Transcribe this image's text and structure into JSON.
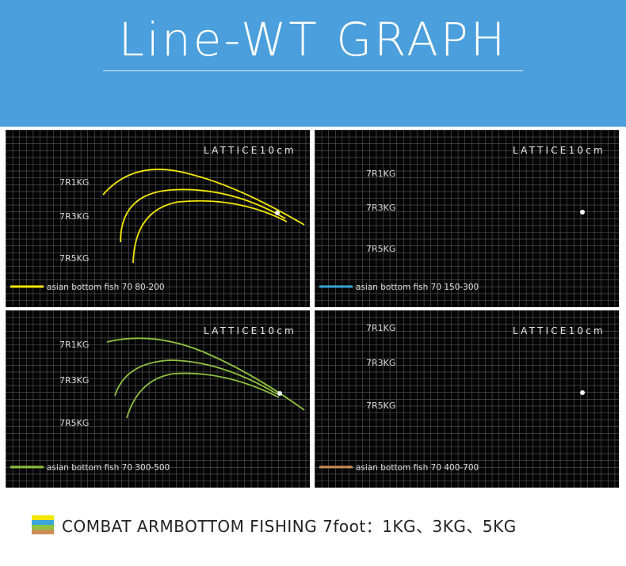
{
  "header": {
    "title": "Line-WT GRAPH"
  },
  "footer": {
    "text": "COMBAT ARMBOTTOM FISHING 7foot：1KG、3KG、5KG",
    "swatch_colors": [
      "#f2e600",
      "#3aa6dd",
      "#8ec23f",
      "#c98f55"
    ]
  },
  "chart_data": [
    {
      "type": "line",
      "grid_label": "LATTICE10cm",
      "color": "#f2e600",
      "legend": "asian bottom fish 70 80-200",
      "series": [
        {
          "name": "7R1KG"
        },
        {
          "name": "7R3KG"
        },
        {
          "name": "7R5KG"
        }
      ]
    },
    {
      "type": "line",
      "grid_label": "LATTICE10cm",
      "color": "#3aa6dd",
      "legend": "asian bottom fish 70 150-300",
      "series": [
        {
          "name": "7R1KG"
        },
        {
          "name": "7R3KG"
        },
        {
          "name": "7R5KG"
        }
      ]
    },
    {
      "type": "line",
      "grid_label": "LATTICE10cm",
      "color": "#8ec23f",
      "legend": "asian bottom fish 70 300-500",
      "series": [
        {
          "name": "7R1KG"
        },
        {
          "name": "7R3KG"
        },
        {
          "name": "7R5KG"
        }
      ]
    },
    {
      "type": "line",
      "grid_label": "LATTICE10cm",
      "color": "#c98f55",
      "legend": "asian bottom fish 70 400-700",
      "series": [
        {
          "name": "7R1KG"
        },
        {
          "name": "7R3KG"
        },
        {
          "name": "7R5KG"
        }
      ]
    }
  ]
}
